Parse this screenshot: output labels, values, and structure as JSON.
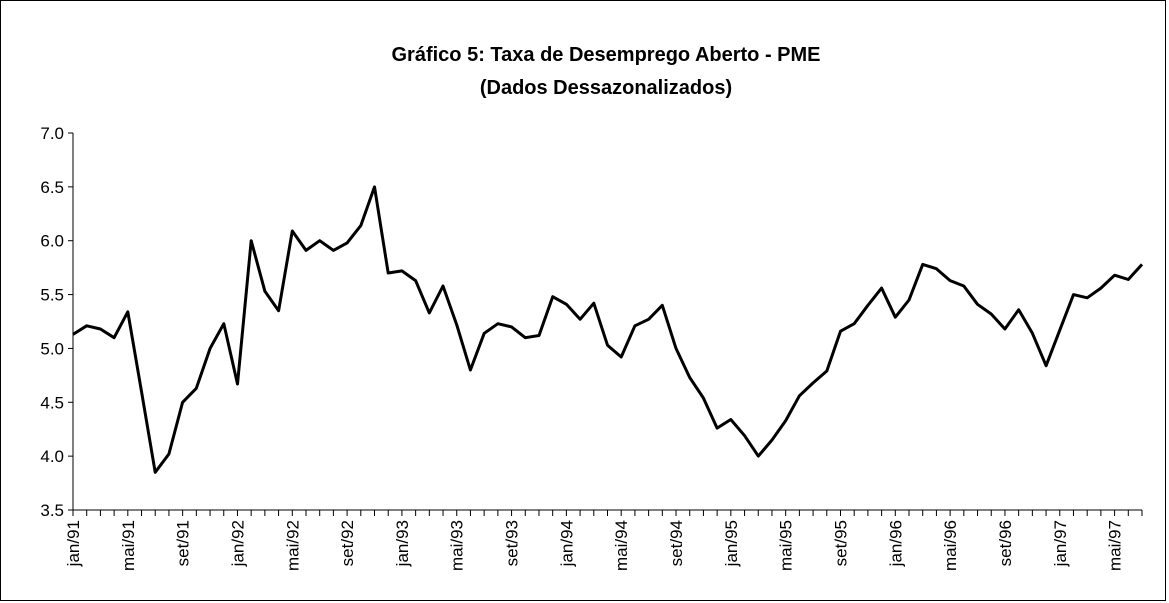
{
  "chart_data": {
    "type": "line",
    "title": "Gráfico 5: Taxa de Desemprego Aberto - PME",
    "subtitle": "(Dados Dessazonalizados)",
    "categories": [
      "jan/91",
      null,
      null,
      null,
      "mai/91",
      null,
      null,
      null,
      "set/91",
      null,
      null,
      null,
      "jan/92",
      null,
      null,
      null,
      "mai/92",
      null,
      null,
      null,
      "set/92",
      null,
      null,
      null,
      "jan/93",
      null,
      null,
      null,
      "mai/93",
      null,
      null,
      null,
      "set/93",
      null,
      null,
      null,
      "jan/94",
      null,
      null,
      null,
      "mai/94",
      null,
      null,
      null,
      "set/94",
      null,
      null,
      null,
      "jan/95",
      null,
      null,
      null,
      "mai/95",
      null,
      null,
      null,
      "set/95",
      null,
      null,
      null,
      "jan/96",
      null,
      null,
      null,
      "mai/96",
      null,
      null,
      null,
      "set/96",
      null,
      null,
      null,
      "jan/97",
      null,
      null,
      null,
      "mai/97",
      null,
      null
    ],
    "values": [
      5.13,
      5.21,
      5.18,
      5.1,
      5.34,
      4.6,
      3.85,
      4.02,
      4.5,
      4.63,
      5.0,
      5.23,
      4.67,
      6.0,
      5.53,
      5.35,
      6.09,
      5.91,
      6.0,
      5.91,
      5.98,
      6.14,
      6.5,
      5.7,
      5.72,
      5.63,
      5.33,
      5.58,
      5.22,
      4.8,
      5.14,
      5.23,
      5.2,
      5.1,
      5.12,
      5.48,
      5.41,
      5.27,
      5.42,
      5.03,
      4.92,
      5.21,
      5.27,
      5.4,
      5.0,
      4.73,
      4.54,
      4.26,
      4.34,
      4.19,
      4.0,
      4.15,
      4.33,
      4.56,
      4.68,
      4.79,
      5.16,
      5.23,
      5.4,
      5.56,
      5.29,
      5.45,
      5.78,
      5.74,
      5.63,
      5.58,
      5.41,
      5.32,
      5.18,
      5.36,
      5.14,
      4.84,
      5.17,
      5.5,
      5.47,
      5.56,
      5.68,
      5.64,
      5.78
    ],
    "color": "#000000",
    "ylim": [
      3.5,
      7.0
    ],
    "yticks": [
      {
        "value": 3.5,
        "label": "3.5"
      },
      {
        "value": 4,
        "label": "4.0"
      },
      {
        "value": 4.5,
        "label": "4.5"
      },
      {
        "value": 5,
        "label": "5.0"
      },
      {
        "value": 5.5,
        "label": "5.5"
      },
      {
        "value": 6,
        "label": "6.0"
      },
      {
        "value": 6.5,
        "label": "6.5"
      },
      {
        "value": 7,
        "label": "7.0"
      }
    ],
    "grid": false
  }
}
